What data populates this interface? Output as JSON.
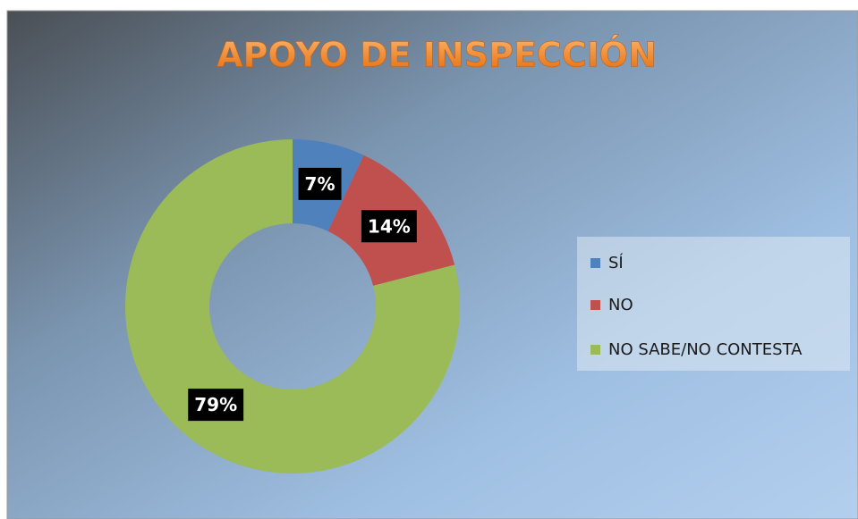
{
  "chart_data": {
    "type": "donut",
    "title": "APOYO DE INSPECCIÓN",
    "categories": [
      "SÍ",
      "NO",
      "NO SABE/NO CONTESTA"
    ],
    "values": [
      7,
      14,
      79
    ],
    "value_labels": [
      "7%",
      "14%",
      "79%"
    ],
    "colors": [
      "#4f81bd",
      "#c0504d",
      "#9bbb59"
    ],
    "legend": "right"
  }
}
